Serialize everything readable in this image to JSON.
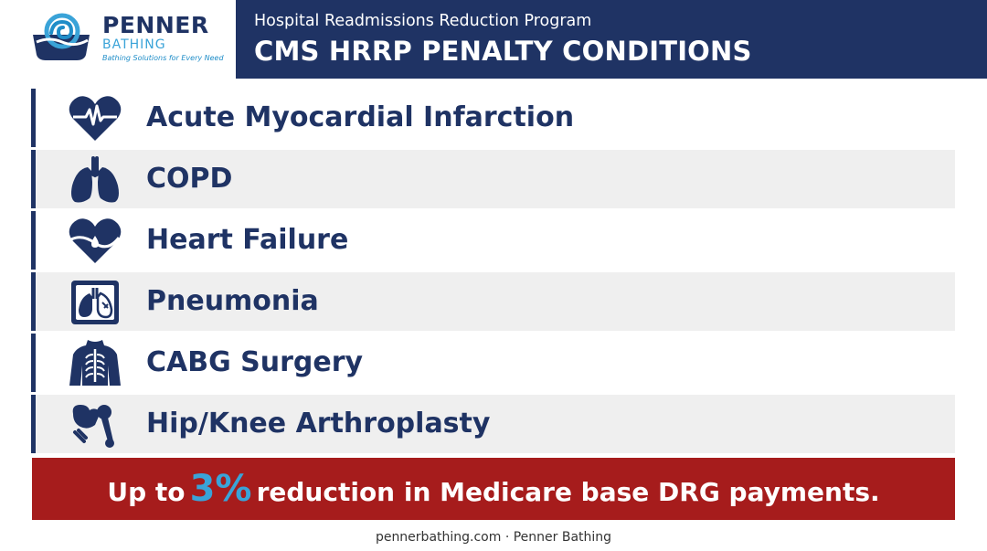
{
  "brand": {
    "name": "PENNER",
    "sub": "BATHING",
    "tagline": "Bathing Solutions for Every Need",
    "colors": {
      "navy": "#1f3364",
      "accent_blue": "#3aa3d8",
      "alert_red": "#a61c1c"
    }
  },
  "header": {
    "subtitle": "Hospital Readmissions Reduction Program",
    "title": "CMS HRRP PENALTY CONDITIONS"
  },
  "conditions": [
    {
      "label": "Acute Myocardial Infarction",
      "icon": "heart-pulse-icon"
    },
    {
      "label": "COPD",
      "icon": "lungs-icon"
    },
    {
      "label": "Heart Failure",
      "icon": "heart-drop-icon"
    },
    {
      "label": "Pneumonia",
      "icon": "lung-xray-icon"
    },
    {
      "label": "CABG Surgery",
      "icon": "ribcage-icon"
    },
    {
      "label": "Hip/Knee Arthroplasty",
      "icon": "hip-joint-icon"
    }
  ],
  "banner": {
    "prefix": "Up to",
    "percent": "3%",
    "suffix": "reduction in Medicare base DRG payments."
  },
  "footer": {
    "text": "pennerbathing.com · Penner Bathing"
  }
}
